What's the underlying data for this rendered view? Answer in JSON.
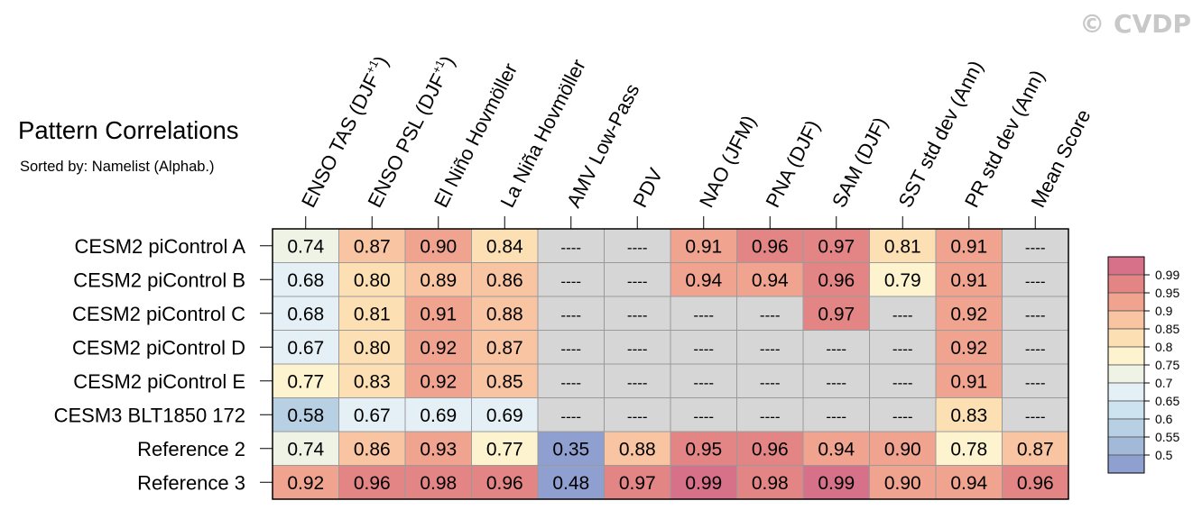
{
  "copyright": "© CVDP",
  "title": "Pattern Correlations",
  "subtitle": "Sorted by: Namelist (Alphab.)",
  "chart_data": {
    "type": "heatmap",
    "title": "Pattern Correlations",
    "columns": [
      {
        "pre": "ENSO TAS (DJF",
        "sup": "+1",
        "post": ")"
      },
      {
        "pre": "ENSO PSL (DJF",
        "sup": "+1",
        "post": ")"
      },
      {
        "pre": "El Niño Hovmöller"
      },
      {
        "pre": "La Niña Hovmöller"
      },
      {
        "pre": "AMV Low-Pass"
      },
      {
        "pre": "PDV"
      },
      {
        "pre": "NAO (JFM)"
      },
      {
        "pre": "PNA (DJF)"
      },
      {
        "pre": "SAM (DJF)"
      },
      {
        "pre": "SST std dev (Ann)"
      },
      {
        "pre": "PR std dev (Ann)"
      },
      {
        "pre": "Mean Score"
      }
    ],
    "rows": [
      "CESM2 piControl A",
      "CESM2 piControl B",
      "CESM2 piControl C",
      "CESM2 piControl D",
      "CESM2 piControl E",
      "CESM3 BLT1850 172",
      "Reference 2",
      "Reference 3"
    ],
    "values": [
      [
        0.74,
        0.87,
        0.9,
        0.84,
        null,
        null,
        0.91,
        0.96,
        0.97,
        0.81,
        0.91,
        null
      ],
      [
        0.68,
        0.8,
        0.89,
        0.86,
        null,
        null,
        0.94,
        0.94,
        0.96,
        0.79,
        0.91,
        null
      ],
      [
        0.68,
        0.81,
        0.91,
        0.88,
        null,
        null,
        null,
        null,
        0.97,
        null,
        0.92,
        null
      ],
      [
        0.67,
        0.8,
        0.92,
        0.87,
        null,
        null,
        null,
        null,
        null,
        null,
        0.92,
        null
      ],
      [
        0.77,
        0.83,
        0.92,
        0.85,
        null,
        null,
        null,
        null,
        null,
        null,
        0.91,
        null
      ],
      [
        0.58,
        0.67,
        0.69,
        0.69,
        null,
        null,
        null,
        null,
        null,
        null,
        0.83,
        null
      ],
      [
        0.74,
        0.86,
        0.93,
        0.77,
        0.35,
        0.88,
        0.95,
        0.96,
        0.94,
        0.9,
        0.78,
        0.87
      ],
      [
        0.92,
        0.96,
        0.98,
        0.96,
        0.48,
        0.97,
        0.99,
        0.98,
        0.99,
        0.9,
        0.94,
        0.96
      ]
    ],
    "missing_label": "----",
    "colorbar": {
      "levels": [
        "0.99",
        "0.95",
        "0.9",
        "0.85",
        "0.8",
        "0.75",
        "0.7",
        "0.65",
        "0.6",
        "0.55",
        "0.5"
      ],
      "bounds": [
        0.5,
        0.55,
        0.6,
        0.65,
        0.7,
        0.75,
        0.8,
        0.85,
        0.9,
        0.95,
        0.99
      ],
      "colors": [
        "#8f9fcf",
        "#a3b9d8",
        "#b8d0e4",
        "#cde3ef",
        "#e4f0f5",
        "#eff3e6",
        "#fdf3cf",
        "#fce0b4",
        "#f8c4a2",
        "#f0a490",
        "#e48585",
        "#d77189"
      ],
      "missing_color": "#d6d6d6"
    }
  }
}
